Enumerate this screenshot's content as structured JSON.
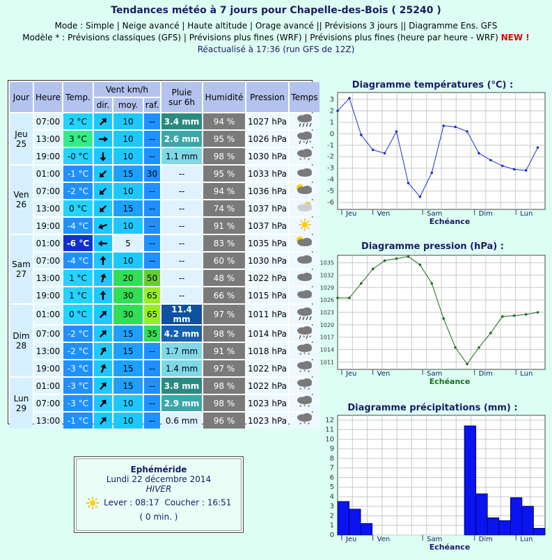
{
  "header": {
    "title": "Tendances météo à 7 jours pour Chapelle-des-Bois ( 25240 )",
    "mode_label": "Mode : ",
    "modes": [
      "Simple",
      "Neige avancé",
      "Haute altitude",
      "Orage avancé",
      "Prévisions 3 jours",
      "Diagramme Ens. GFS"
    ],
    "model_label": "Modèle * : ",
    "models": [
      "Prévisions classiques (GFS)",
      "Prévisions plus fines (WRF)",
      "Prévisions plus fines (heure par heure - WRF)"
    ],
    "new_badge": "NEW !",
    "refresh": "Réactualisé à 17:36 (run GFS de 12Z)"
  },
  "table": {
    "headers": {
      "jour": "Jour",
      "heure": "Heure",
      "temp": "Temp.",
      "vent": "Vent km/h",
      "dir": "dir.",
      "moy": "moy.",
      "raf": "raf.",
      "pluie_line1": "Pluie",
      "pluie_line2": "sur 6h",
      "humidite": "Humidité",
      "pression": "Pression",
      "temps": "Temps"
    },
    "days": [
      {
        "name": "Jeu",
        "num": "25",
        "rows": [
          {
            "h": "07:00",
            "t": "2 °C",
            "tc": "#22d3ff",
            "dir": 45,
            "ws": "10",
            "wsc": "#1ec8ff",
            "gust": "--",
            "gc": "#1e90ff",
            "rain": "3.4 mm",
            "rc": "#2a8a82",
            "rt": "#fff",
            "hum": "94 %",
            "pres": "1027 hPa",
            "wx": "rain"
          },
          {
            "h": "13:00",
            "t": "3 °C",
            "tc": "#33ee88",
            "dir": 90,
            "ws": "10",
            "wsc": "#1ec8ff",
            "gust": "--",
            "gc": "#1e90ff",
            "rain": "2.6 mm",
            "rc": "#3aa8a8",
            "rt": "#fff",
            "hum": "95 %",
            "pres": "1026 hPa",
            "wx": "snowrain"
          },
          {
            "h": "19:00",
            "t": "-0 °C",
            "tc": "#22d3ff",
            "dir": 180,
            "ws": "10",
            "wsc": "#1ec8ff",
            "gust": "--",
            "gc": "#1e90ff",
            "rain": "1.1 mm",
            "rc": "#7fd8e8",
            "rt": "#000",
            "hum": "98 %",
            "pres": "1030 hPa",
            "wx": "snow"
          }
        ]
      },
      {
        "name": "Ven",
        "num": "26",
        "rows": [
          {
            "h": "01:00",
            "t": "-1 °C",
            "tc": "#1e90ff",
            "dir": 225,
            "ws": "15",
            "wsc": "#1ea0ff",
            "gust": "30",
            "gc": "#1e90ff",
            "rain": "--",
            "rc": "#dff3ff",
            "rt": "#000",
            "hum": "95 %",
            "pres": "1033 hPa",
            "wx": "cloud"
          },
          {
            "h": "07:00",
            "t": "-2 °C",
            "tc": "#1e90ff",
            "dir": 225,
            "ws": "10",
            "wsc": "#1ec8ff",
            "gust": "--",
            "gc": "#1e90ff",
            "rain": "--",
            "rc": "#dff3ff",
            "rt": "#000",
            "hum": "94 %",
            "pres": "1036 hPa",
            "wx": "suncloud"
          },
          {
            "h": "13:00",
            "t": "0 °C",
            "tc": "#22d3ff",
            "dir": 225,
            "ws": "15",
            "wsc": "#1ea0ff",
            "gust": "--",
            "gc": "#1e90ff",
            "rain": "--",
            "rc": "#dff3ff",
            "rt": "#000",
            "hum": "74 %",
            "pres": "1037 hPa",
            "wx": "sunfew"
          },
          {
            "h": "19:00",
            "t": "-4 °C",
            "tc": "#1e90ff",
            "dir": 250,
            "ws": "10",
            "wsc": "#1ec8ff",
            "gust": "--",
            "gc": "#1e90ff",
            "rain": "--",
            "rc": "#dff3ff",
            "rt": "#000",
            "hum": "91 %",
            "pres": "1037 hPa",
            "wx": "sun"
          }
        ]
      },
      {
        "name": "Sam",
        "num": "27",
        "rows": [
          {
            "h": "01:00",
            "t": "-6 °C",
            "tc": "#1030d0",
            "dir": 270,
            "ws": "5",
            "wsc": "#dff3ff",
            "gust": "--",
            "gc": "#1e90ff",
            "rain": "--",
            "rc": "#dff3ff",
            "rt": "#000",
            "hum": "83 %",
            "pres": "1035 hPa",
            "wx": "suncloud"
          },
          {
            "h": "07:00",
            "t": "-4 °C",
            "tc": "#1e90ff",
            "dir": 0,
            "ws": "10",
            "wsc": "#1ec8ff",
            "gust": "--",
            "gc": "#1e90ff",
            "rain": "--",
            "rc": "#dff3ff",
            "rt": "#000",
            "hum": "60 %",
            "pres": "1030 hPa",
            "wx": "cloud"
          },
          {
            "h": "13:00",
            "t": "1 °C",
            "tc": "#22d3ff",
            "dir": 15,
            "ws": "20",
            "wsc": "#33dd55",
            "gust": "50",
            "gc": "#66cc33",
            "rain": "--",
            "rc": "#dff3ff",
            "rt": "#000",
            "hum": "48 %",
            "pres": "1022 hPa",
            "wx": "cloud"
          },
          {
            "h": "19:00",
            "t": "1 °C",
            "tc": "#22d3ff",
            "dir": 0,
            "ws": "30",
            "wsc": "#33dd55",
            "gust": "65",
            "gc": "#99ee22",
            "rain": "--",
            "rc": "#dff3ff",
            "rt": "#000",
            "hum": "66 %",
            "pres": "1015 hPa",
            "wx": "cloud"
          }
        ]
      },
      {
        "name": "Dim",
        "num": "28",
        "rows": [
          {
            "h": "01:00",
            "t": "0 °C",
            "tc": "#22d3ff",
            "dir": 45,
            "ws": "30",
            "wsc": "#33dd55",
            "gust": "65",
            "gc": "#99ee22",
            "rain": "11.4 mm",
            "rc": "#1050a0",
            "rt": "#fff",
            "hum": "97 %",
            "pres": "1011 hPa",
            "wx": "rain"
          },
          {
            "h": "07:00",
            "t": "-2 °C",
            "tc": "#1e90ff",
            "dir": 45,
            "ws": "15",
            "wsc": "#1ea0ff",
            "gust": "35",
            "gc": "#33dd55",
            "rain": "4.2 mm",
            "rc": "#1560b0",
            "rt": "#fff",
            "hum": "98 %",
            "pres": "1014 hPa",
            "wx": "snowrain"
          },
          {
            "h": "13:00",
            "t": "-2 °C",
            "tc": "#1e90ff",
            "dir": 30,
            "ws": "15",
            "wsc": "#1ea0ff",
            "gust": "--",
            "gc": "#1e90ff",
            "rain": "1.7 mm",
            "rc": "#7fd8e8",
            "rt": "#000",
            "hum": "91 %",
            "pres": "1018 hPa",
            "wx": "snow"
          },
          {
            "h": "19:00",
            "t": "-3 °C",
            "tc": "#1e90ff",
            "dir": 20,
            "ws": "15",
            "wsc": "#1ea0ff",
            "gust": "--",
            "gc": "#1e90ff",
            "rain": "1.4 mm",
            "rc": "#7fd8e8",
            "rt": "#000",
            "hum": "97 %",
            "pres": "1022 hPa",
            "wx": "snow"
          }
        ]
      },
      {
        "name": "Lun",
        "num": "29",
        "rows": [
          {
            "h": "01:00",
            "t": "-3 °C",
            "tc": "#1e90ff",
            "dir": 40,
            "ws": "15",
            "wsc": "#1ea0ff",
            "gust": "--",
            "gc": "#1e90ff",
            "rain": "3.8 mm",
            "rc": "#2a8a82",
            "rt": "#fff",
            "hum": "98 %",
            "pres": "1022 hPa",
            "wx": "snow"
          },
          {
            "h": "07:00",
            "t": "-3 °C",
            "tc": "#1e90ff",
            "dir": 40,
            "ws": "10",
            "wsc": "#1ec8ff",
            "gust": "--",
            "gc": "#1e90ff",
            "rain": "2.9 mm",
            "rc": "#3aa8a8",
            "rt": "#fff",
            "hum": "98 %",
            "pres": "1023 hPa",
            "wx": "snow"
          },
          {
            "h": "13:00",
            "t": "-1 °C",
            "tc": "#1e90ff",
            "dir": 40,
            "ws": "10",
            "wsc": "#1ec8ff",
            "gust": "--",
            "gc": "#1e90ff",
            "rain": "0.6 mm",
            "rc": "#dff3ff",
            "rt": "#000",
            "hum": "96 %",
            "pres": "1023 hPa",
            "wx": "snow"
          }
        ]
      }
    ]
  },
  "ephemeride": {
    "title": "Ephéméride",
    "date": "Lundi 22 décembre 2014",
    "season": "HIVER",
    "sunrise": "Lever : 08:17",
    "sunset": "Coucher : 16:51",
    "duration": "( 0 min. )"
  },
  "chart_data": [
    {
      "type": "line",
      "title": "Diagramme températures (°C) :",
      "xlabel": "Echéance",
      "x_ticks": [
        "Jeu",
        "Ven",
        "Sam",
        "Dim",
        "Lun"
      ],
      "ylim": [
        -6.6,
        3.6
      ],
      "y_ticks": [
        3,
        2,
        1,
        0,
        -1,
        -2,
        -3,
        -4,
        -5,
        -6
      ],
      "values": [
        2,
        3.1,
        -0.1,
        -1.4,
        -1.7,
        0.2,
        -4.3,
        -5.5,
        -3.4,
        0.7,
        0.6,
        0.2,
        -1.7,
        -2.3,
        -2.8,
        -3.1,
        -3.2,
        -1.2
      ],
      "color": "#1f2fd0"
    },
    {
      "type": "line",
      "title": "Diagramme pression (hPa) :",
      "xlabel": "Echéance",
      "x_ticks": [
        "Jeu",
        "Ven",
        "Sam",
        "Dim",
        "Lun"
      ],
      "ylim": [
        1009.2,
        1036.8
      ],
      "y_ticks": [
        1035,
        1032,
        1029,
        1026,
        1023,
        1020,
        1017,
        1014,
        1011
      ],
      "values": [
        1026.5,
        1026.5,
        1030,
        1033.5,
        1035.5,
        1036,
        1036.5,
        1034.5,
        1030,
        1021.5,
        1014.5,
        1010.5,
        1014.5,
        1018,
        1022,
        1022.2,
        1022.5,
        1023
      ],
      "color": "#1f6a1f"
    },
    {
      "type": "bar",
      "title": "Diagramme précipitations (mm) :",
      "xlabel": "Echéance",
      "x_ticks": [
        "Jeu",
        "Ven",
        "Sam",
        "Dim",
        "Lun"
      ],
      "ylim": [
        0,
        12.5
      ],
      "y_ticks": [
        0,
        1,
        2,
        3,
        4,
        5,
        6,
        7,
        8,
        9,
        10,
        11,
        12
      ],
      "values": [
        3.5,
        2.7,
        1.2,
        0,
        0,
        0,
        0,
        0,
        0,
        0,
        0,
        11.4,
        4.3,
        1.8,
        1.5,
        3.9,
        3.0,
        0.7
      ],
      "color": "#0a14f0"
    }
  ]
}
